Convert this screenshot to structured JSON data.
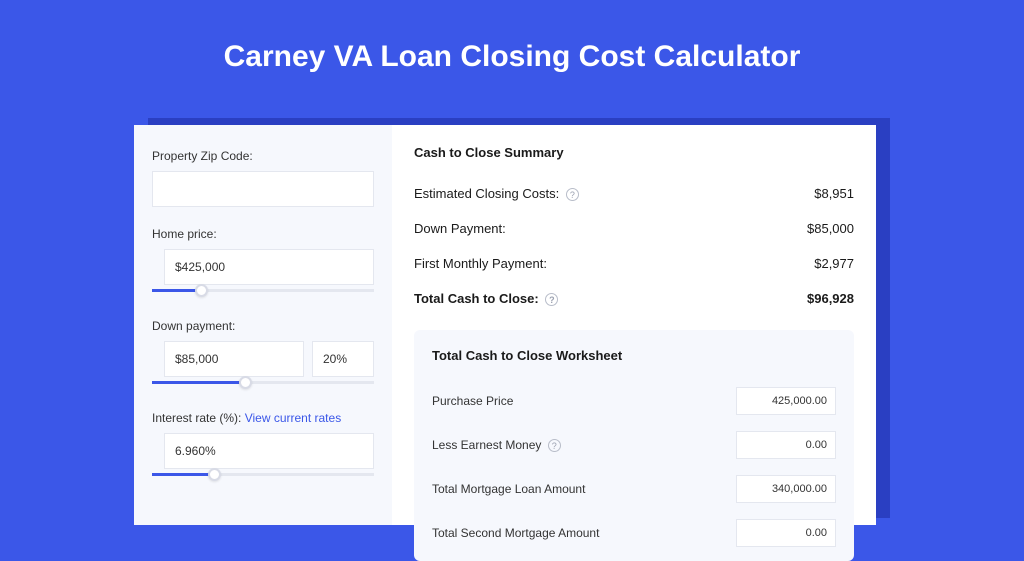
{
  "title": "Carney VA Loan Closing Cost Calculator",
  "colors": {
    "page_bg": "#3b57e8",
    "shadow": "#2a3fc2",
    "card_bg": "#ffffff",
    "left_panel_bg": "#f6f8fd",
    "input_border": "#e4e7ef",
    "link": "#3b57e8",
    "slider_fill": "#3b57e8",
    "slider_track": "#e4e7ef"
  },
  "form": {
    "zip_label": "Property Zip Code:",
    "zip_value": "",
    "home_price_label": "Home price:",
    "home_price_value": "$425,000",
    "home_price_slider_pct": 22,
    "down_payment_label": "Down payment:",
    "down_payment_value": "$85,000",
    "down_payment_pct": "20%",
    "down_payment_slider_pct": 42,
    "interest_label": "Interest rate (%): ",
    "interest_link": "View current rates",
    "interest_value": "6.960%",
    "interest_slider_pct": 28
  },
  "summary": {
    "title": "Cash to Close Summary",
    "rows": [
      {
        "label": "Estimated Closing Costs:",
        "help": true,
        "value": "$8,951",
        "bold": false
      },
      {
        "label": "Down Payment:",
        "help": false,
        "value": "$85,000",
        "bold": false
      },
      {
        "label": "First Monthly Payment:",
        "help": false,
        "value": "$2,977",
        "bold": false
      },
      {
        "label": "Total Cash to Close:",
        "help": true,
        "value": "$96,928",
        "bold": true
      }
    ]
  },
  "worksheet": {
    "title": "Total Cash to Close Worksheet",
    "rows": [
      {
        "label": "Purchase Price",
        "help": false,
        "value": "425,000.00"
      },
      {
        "label": "Less Earnest Money",
        "help": true,
        "value": "0.00"
      },
      {
        "label": "Total Mortgage Loan Amount",
        "help": false,
        "value": "340,000.00"
      },
      {
        "label": "Total Second Mortgage Amount",
        "help": false,
        "value": "0.00"
      }
    ]
  }
}
